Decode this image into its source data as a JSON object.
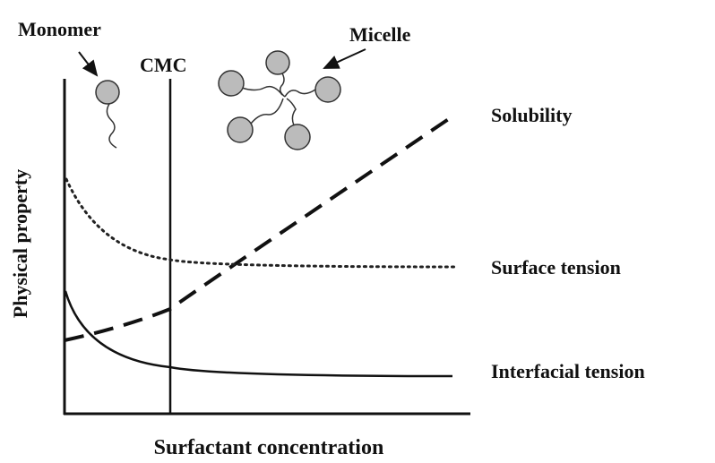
{
  "labels": {
    "monomer": "Monomer",
    "cmc": "CMC",
    "micelle": "Micelle",
    "solubility": "Solubility",
    "surface_tension": "Surface tension",
    "interfacial_tension": "Interfacial tension"
  },
  "axes": {
    "y_label": "Physical property",
    "x_label": "Surfactant concentration"
  }
}
